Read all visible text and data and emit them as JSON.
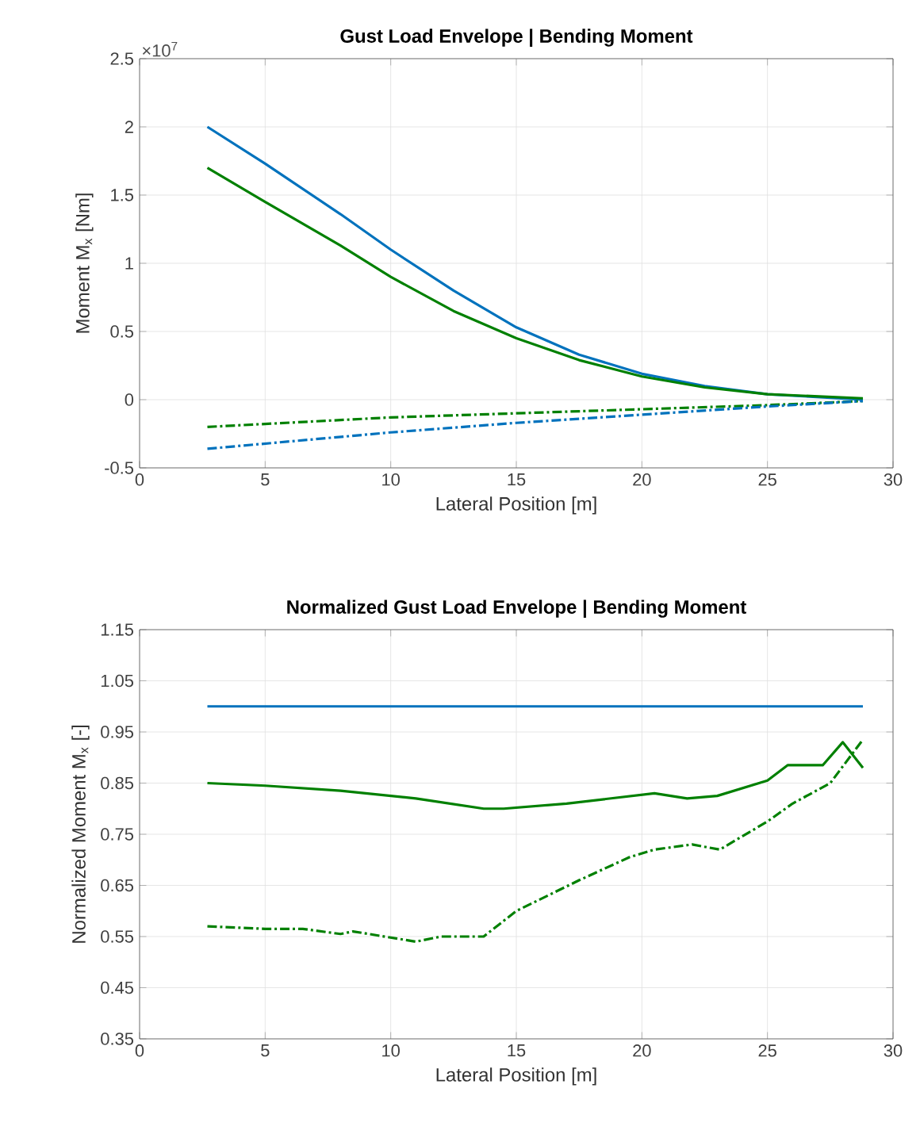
{
  "chart_data": [
    {
      "type": "line",
      "title": "Gust Load Envelope | Bending Moment",
      "xlabel": "Lateral Position [m]",
      "ylabel": "Moment M$_{x}$ [Nm]",
      "annotations": [
        "×10$^{7}$"
      ],
      "xlim": [
        0,
        30
      ],
      "ylim": [
        -0.5,
        2.5
      ],
      "xticks": [
        0,
        5,
        10,
        15,
        20,
        25,
        30
      ],
      "yticks": [
        -0.5,
        0,
        0.5,
        1,
        1.5,
        2,
        2.5
      ],
      "grid": true,
      "series": [
        {
          "color": "#0072bd",
          "line_style": "solid",
          "x": [
            2.7,
            5,
            8,
            10,
            12.5,
            15,
            17.5,
            20,
            22.5,
            25,
            28.8
          ],
          "values": [
            2.0,
            1.73,
            1.36,
            1.1,
            0.8,
            0.53,
            0.33,
            0.19,
            0.1,
            0.04,
            0
          ]
        },
        {
          "color": "#008000",
          "line_style": "solid",
          "x": [
            2.7,
            5,
            8,
            10,
            12.5,
            15,
            17.5,
            20,
            22.5,
            25,
            28.8
          ],
          "values": [
            1.7,
            1.45,
            1.13,
            0.9,
            0.65,
            0.45,
            0.29,
            0.17,
            0.09,
            0.04,
            0.01
          ]
        },
        {
          "color": "#008000",
          "line_style": "dashed",
          "x": [
            2.7,
            10,
            15,
            20,
            25,
            28.8
          ],
          "values": [
            -0.2,
            -0.13,
            -0.1,
            -0.07,
            -0.04,
            -0.01
          ]
        },
        {
          "color": "#0072bd",
          "line_style": "dashed",
          "x": [
            2.7,
            10,
            15,
            20,
            25,
            28.8
          ],
          "values": [
            -0.36,
            -0.24,
            -0.17,
            -0.11,
            -0.05,
            -0.01
          ]
        }
      ]
    },
    {
      "type": "line",
      "title": "Normalized Gust Load Envelope | Bending Moment",
      "xlabel": "Lateral Position [m]",
      "ylabel": "Normalized Moment M$_{x}$ [-]",
      "xlim": [
        0,
        30
      ],
      "ylim": [
        0.35,
        1.15
      ],
      "xticks": [
        0,
        5,
        10,
        15,
        20,
        25,
        30
      ],
      "yticks": [
        0.35,
        0.45,
        0.55,
        0.65,
        0.75,
        0.85,
        0.95,
        1.05,
        1.15
      ],
      "grid": true,
      "series": [
        {
          "color": "#0072bd",
          "line_style": "solid",
          "x": [
            2.7,
            28.8
          ],
          "values": [
            1.0,
            1.0
          ]
        },
        {
          "color": "#008000",
          "line_style": "solid",
          "x": [
            2.7,
            5,
            8,
            11,
            13.7,
            14.5,
            17,
            20.5,
            21.8,
            23,
            25,
            25.8,
            27.2,
            28,
            28.8
          ],
          "values": [
            0.85,
            0.845,
            0.835,
            0.82,
            0.8,
            0.8,
            0.81,
            0.83,
            0.82,
            0.825,
            0.855,
            0.885,
            0.885,
            0.93,
            0.88
          ]
        },
        {
          "color": "#008000",
          "line_style": "dashed",
          "x": [
            2.7,
            5,
            6.5,
            8,
            8.5,
            11,
            12,
            13.7,
            15,
            17.5,
            19.5,
            20.5,
            22,
            23.1,
            25,
            26,
            27.5,
            28.8
          ],
          "values": [
            0.57,
            0.565,
            0.565,
            0.555,
            0.56,
            0.54,
            0.55,
            0.55,
            0.6,
            0.66,
            0.705,
            0.72,
            0.73,
            0.72,
            0.775,
            0.81,
            0.85,
            0.935
          ]
        }
      ]
    }
  ]
}
